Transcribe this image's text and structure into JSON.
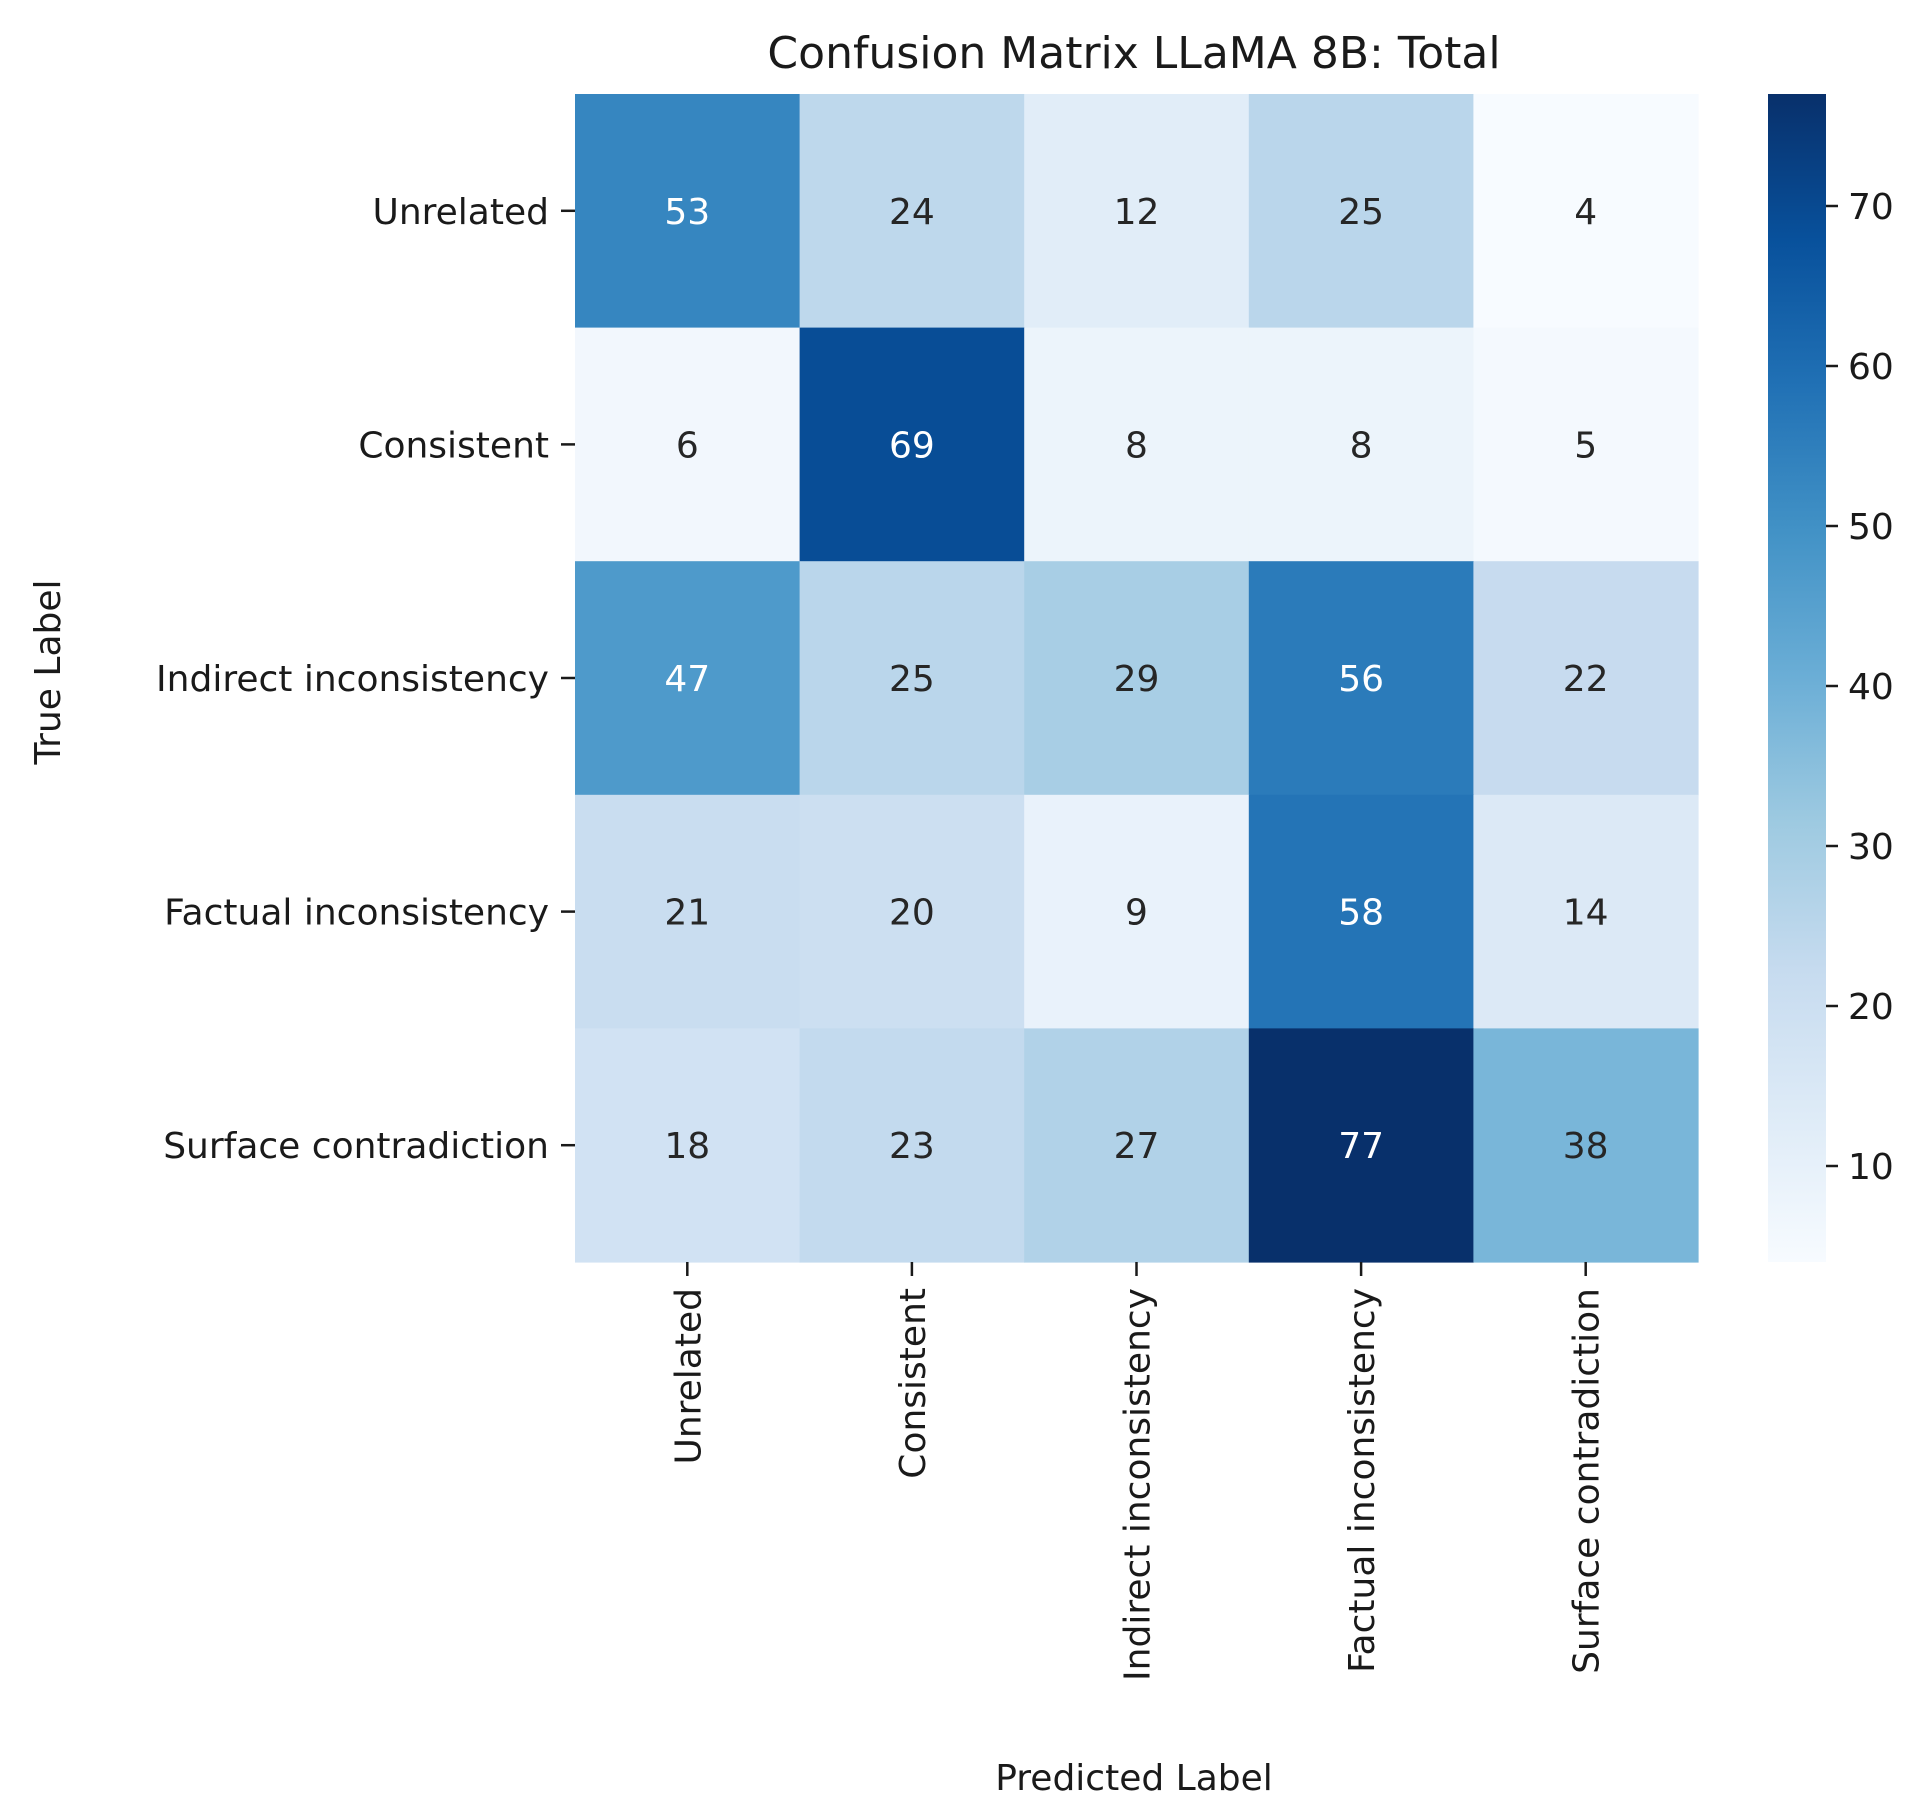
{
  "chart_data": {
    "type": "heatmap",
    "title": "Confusion Matrix LLaMA 8B: Total",
    "xlabel": "Predicted Label",
    "ylabel": "True Label",
    "x_categories": [
      "Unrelated",
      "Consistent",
      "Indirect inconsistency",
      "Factual inconsistency",
      "Surface contradiction"
    ],
    "y_categories": [
      "Unrelated",
      "Consistent",
      "Indirect inconsistency",
      "Factual inconsistency",
      "Surface contradiction"
    ],
    "values": [
      [
        53,
        24,
        12,
        25,
        4
      ],
      [
        6,
        69,
        8,
        8,
        5
      ],
      [
        47,
        25,
        29,
        56,
        22
      ],
      [
        21,
        20,
        9,
        58,
        14
      ],
      [
        18,
        23,
        27,
        77,
        38
      ]
    ],
    "colormap": "Blues",
    "colorbar": {
      "min": 4,
      "max": 77,
      "ticks": [
        10,
        20,
        30,
        40,
        50,
        60,
        70
      ]
    }
  }
}
